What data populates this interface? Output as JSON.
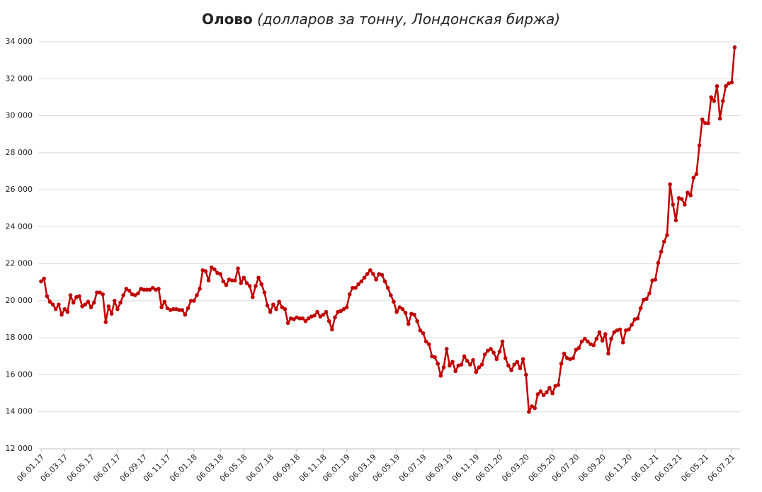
{
  "chart_data": {
    "type": "line",
    "title": "Олово",
    "subtitle": "(долларов за тонну, Лондонская биржа)",
    "categories": [
      "06.01.17",
      null,
      null,
      null,
      null,
      null,
      null,
      null,
      "06.03.17",
      null,
      null,
      null,
      null,
      null,
      null,
      null,
      null,
      "06.05.17",
      null,
      null,
      null,
      null,
      null,
      null,
      null,
      null,
      "06.07.17",
      null,
      null,
      null,
      null,
      null,
      null,
      null,
      null,
      "06.09.17",
      null,
      null,
      null,
      null,
      null,
      null,
      null,
      "06.11.17",
      null,
      null,
      null,
      null,
      null,
      null,
      null,
      null,
      "06.01.18",
      null,
      null,
      null,
      null,
      null,
      null,
      null,
      null,
      "06.03.18",
      null,
      null,
      null,
      null,
      null,
      null,
      null,
      "06.05.18",
      null,
      null,
      null,
      null,
      null,
      null,
      null,
      null,
      "06.07.18",
      null,
      null,
      null,
      null,
      null,
      null,
      null,
      null,
      "06.09.18",
      null,
      null,
      null,
      null,
      null,
      null,
      null,
      null,
      "06.11.18",
      null,
      null,
      null,
      null,
      null,
      null,
      null,
      "06.01.19",
      null,
      null,
      null,
      null,
      null,
      null,
      null,
      null,
      "06.03.19",
      null,
      null,
      null,
      null,
      null,
      null,
      null,
      "06.05.19",
      null,
      null,
      null,
      null,
      null,
      null,
      null,
      null,
      "06.07.19",
      null,
      null,
      null,
      null,
      null,
      null,
      null,
      null,
      "06.09.19",
      null,
      null,
      null,
      null,
      null,
      null,
      null,
      null,
      "06.11.19",
      null,
      null,
      null,
      null,
      null,
      null,
      null,
      "06.01.20",
      null,
      null,
      null,
      null,
      null,
      null,
      null,
      null,
      "06.03.20",
      null,
      null,
      null,
      null,
      null,
      null,
      null,
      null,
      "06.05.20",
      null,
      null,
      null,
      null,
      null,
      null,
      null,
      "06.07.20",
      null,
      null,
      null,
      null,
      null,
      null,
      null,
      null,
      "06.09.20",
      null,
      null,
      null,
      null,
      null,
      null,
      null,
      null,
      "06.11.20",
      null,
      null,
      null,
      null,
      null,
      null,
      null,
      null,
      "06.01.21",
      null,
      null,
      null,
      null,
      null,
      null,
      null,
      "06.03.21",
      null,
      null,
      null,
      null,
      null,
      null,
      null,
      null,
      "06.05.21",
      null,
      null,
      null,
      null,
      null,
      null,
      null,
      null,
      "06.07.21",
      null
    ],
    "series": [
      {
        "name": "Олово",
        "color": "#c00000",
        "values": [
          21050,
          21200,
          20250,
          19950,
          19800,
          19550,
          19800,
          19250,
          19550,
          19400,
          20300,
          19900,
          20200,
          20250,
          19700,
          19800,
          19950,
          19650,
          19900,
          20450,
          20450,
          20350,
          18850,
          19700,
          19300,
          20000,
          19550,
          19900,
          20300,
          20650,
          20550,
          20350,
          20300,
          20400,
          20650,
          20600,
          20600,
          20600,
          20700,
          20600,
          20650,
          19650,
          19950,
          19600,
          19500,
          19550,
          19550,
          19500,
          19500,
          19250,
          19600,
          20000,
          20000,
          20300,
          20650,
          21650,
          21600,
          21100,
          21800,
          21700,
          21500,
          21450,
          21050,
          20850,
          21150,
          21100,
          21100,
          21750,
          20950,
          21250,
          20950,
          20800,
          20200,
          20800,
          21250,
          20900,
          20450,
          19750,
          19400,
          19800,
          19550,
          19950,
          19650,
          19550,
          18800,
          19050,
          19000,
          19100,
          19050,
          19050,
          18900,
          19050,
          19150,
          19200,
          19400,
          19150,
          19250,
          19400,
          18900,
          18450,
          19100,
          19400,
          19450,
          19550,
          19650,
          20350,
          20700,
          20700,
          20900,
          21050,
          21250,
          21450,
          21650,
          21450,
          21150,
          21450,
          21400,
          21050,
          20700,
          20300,
          19950,
          19400,
          19650,
          19550,
          19350,
          18750,
          19300,
          19250,
          18900,
          18400,
          18250,
          17800,
          17650,
          17000,
          16950,
          16600,
          15950,
          16400,
          17400,
          16500,
          16700,
          16200,
          16500,
          16550,
          17000,
          16750,
          16550,
          16800,
          16150,
          16400,
          16550,
          17100,
          17300,
          17400,
          17200,
          16850,
          17250,
          17800,
          16900,
          16500,
          16250,
          16550,
          16700,
          16350,
          16850,
          16000,
          14000,
          14300,
          14200,
          14950,
          15100,
          14900,
          15050,
          15300,
          15000,
          15400,
          15450,
          16600,
          17150,
          16900,
          16850,
          16900,
          17350,
          17450,
          17800,
          17950,
          17800,
          17650,
          17600,
          17950,
          18300,
          17850,
          18200,
          17150,
          17950,
          18300,
          18400,
          18450,
          17750,
          18400,
          18450,
          18700,
          19000,
          19050,
          19600,
          20050,
          20100,
          20400,
          21100,
          21150,
          22050,
          22650,
          23200,
          23550,
          26300,
          25200,
          24350,
          25550,
          25500,
          25200,
          25850,
          25700,
          26650,
          26850,
          28400,
          29800,
          29600,
          29600,
          31000,
          30800,
          31600,
          29850,
          30800,
          31600,
          31750,
          31800,
          33700
        ]
      }
    ],
    "ylim": [
      12000,
      34000
    ],
    "yticks": [
      {
        "value": 12000,
        "label": "12 000"
      },
      {
        "value": 14000,
        "label": "14 000"
      },
      {
        "value": 16000,
        "label": "16 000"
      },
      {
        "value": 18000,
        "label": "18 000"
      },
      {
        "value": 20000,
        "label": "20 000"
      },
      {
        "value": 22000,
        "label": "22 000"
      },
      {
        "value": 24000,
        "label": "24 000"
      },
      {
        "value": 26000,
        "label": "26 000"
      },
      {
        "value": 28000,
        "label": "28 000"
      },
      {
        "value": 30000,
        "label": "30 000"
      },
      {
        "value": 32000,
        "label": "32 000"
      },
      {
        "value": 34000,
        "label": "34 000"
      }
    ],
    "grid": true
  }
}
